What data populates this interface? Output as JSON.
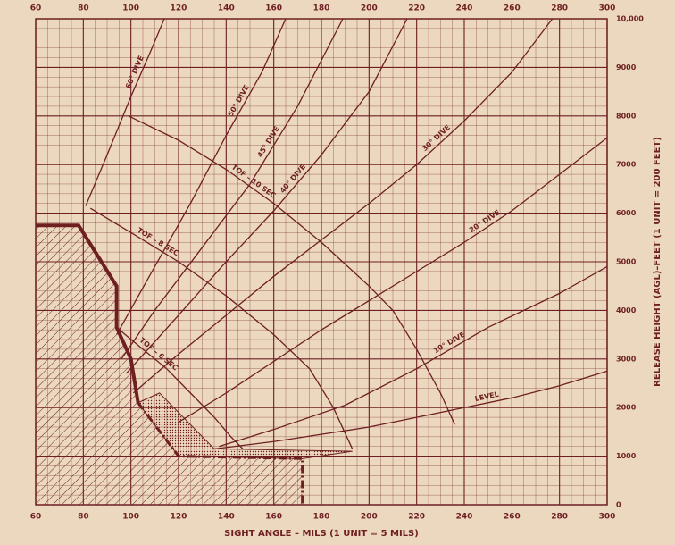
{
  "chart_data": {
    "type": "line",
    "x_label": "SIGHT ANGLE – MILS (1 UNIT = 5 MILS)",
    "y_label": "RELEASE HEIGHT (AGL)–FEET (1 UNIT = 200 FEET)",
    "xlim": [
      60,
      300
    ],
    "ylim": [
      0,
      10000
    ],
    "xticks": [
      60,
      80,
      100,
      120,
      140,
      160,
      180,
      200,
      220,
      240,
      260,
      280,
      300
    ],
    "yticks": [
      0,
      1000,
      2000,
      3000,
      4000,
      5000,
      6000,
      7000,
      8000,
      9000,
      {
        "value": 10000,
        "label": "10,000"
      }
    ],
    "grid": true,
    "series": [
      {
        "name": "LEVEL",
        "color": "#6e1f22",
        "x": [
          135,
          160,
          180,
          200,
          220,
          240,
          260,
          280,
          300
        ],
        "values": [
          1150,
          1300,
          1450,
          1600,
          1800,
          2000,
          2200,
          2450,
          2750
        ]
      },
      {
        "name": "10° DIVE",
        "color": "#6e1f22",
        "x": [
          137,
          160,
          190,
          220,
          250,
          280,
          300
        ],
        "values": [
          1200,
          1550,
          2050,
          2800,
          3650,
          4350,
          4900
        ]
      },
      {
        "name": "20° DIVE",
        "color": "#6e1f22",
        "x": [
          120,
          140,
          160,
          180,
          200,
          220,
          240,
          260,
          280,
          300
        ],
        "values": [
          1700,
          2300,
          2950,
          3600,
          4200,
          4800,
          5400,
          6050,
          6800,
          7550
        ]
      },
      {
        "name": "30° DIVE",
        "color": "#6e1f22",
        "x": [
          101,
          120,
          140,
          160,
          180,
          200,
          220,
          240,
          260,
          277
        ],
        "values": [
          2300,
          3100,
          3900,
          4700,
          5450,
          6200,
          7000,
          7900,
          8900,
          10000
        ]
      },
      {
        "name": "40° DIVE",
        "color": "#6e1f22",
        "x": [
          98,
          120,
          140,
          160,
          180,
          200,
          216
        ],
        "values": [
          2700,
          3900,
          5000,
          6050,
          7200,
          8500,
          10000
        ]
      },
      {
        "name": "45° DIVE",
        "color": "#6e1f22",
        "x": [
          96,
          110,
          130,
          150,
          170,
          189
        ],
        "values": [
          3000,
          4000,
          5300,
          6600,
          8200,
          10000
        ]
      },
      {
        "name": "50° DIVE",
        "color": "#6e1f22",
        "x": [
          94,
          110,
          125,
          140,
          155,
          165
        ],
        "values": [
          3500,
          4900,
          6200,
          7600,
          8900,
          10000
        ]
      },
      {
        "name": "60° DIVE",
        "color": "#6e1f22",
        "x": [
          81,
          90,
          100,
          108,
          114
        ],
        "values": [
          6150,
          7200,
          8400,
          9300,
          10000
        ]
      },
      {
        "name": "TOF – 10 SEC",
        "color": "#6e1f22",
        "x": [
          99,
          120,
          140,
          160,
          180,
          200,
          210,
          220,
          230,
          236
        ],
        "values": [
          8000,
          7500,
          6900,
          6200,
          5400,
          4500,
          4000,
          3200,
          2300,
          1650
        ]
      },
      {
        "name": "TOF – 8 SEC",
        "color": "#6e1f22",
        "x": [
          83,
          100,
          120,
          140,
          160,
          175,
          185,
          193
        ],
        "values": [
          6100,
          5600,
          5000,
          4300,
          3500,
          2800,
          2000,
          1150
        ]
      },
      {
        "name": "TOF – 6 SEC",
        "color": "#6e1f22",
        "x": [
          94,
          105,
          115,
          125,
          135,
          142,
          147
        ],
        "values": [
          3650,
          3200,
          2800,
          2300,
          1800,
          1400,
          1150
        ]
      }
    ],
    "boundary": {
      "color": "#6e1f22",
      "style": "heavy",
      "x": [
        60,
        78,
        94,
        94,
        100,
        103
      ],
      "values": [
        5750,
        5750,
        4500,
        3650,
        3000,
        2100
      ]
    },
    "lower_boundary": {
      "color": "#6e1f22",
      "style": "dash-dot",
      "x": [
        103,
        120,
        172,
        172
      ],
      "values": [
        2100,
        1000,
        950,
        0
      ]
    },
    "shaded_region": {
      "color": "#b79a90",
      "x": [
        103,
        112,
        135,
        193,
        172,
        120
      ],
      "values": [
        2100,
        2300,
        1150,
        1100,
        950,
        1000
      ]
    }
  }
}
